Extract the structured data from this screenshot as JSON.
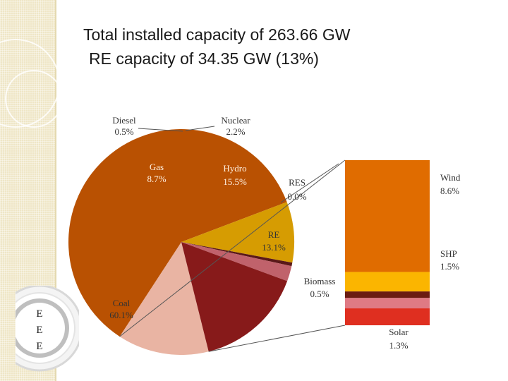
{
  "slide": {
    "title_line1": "Total installed capacity of 263.66 GW",
    "title_line2": "RE capacity of 34.35 GW (13%)",
    "badge_letters": [
      "E",
      "E",
      "E"
    ]
  },
  "colors": {
    "coal": "#b95102",
    "gas": "#d69c02",
    "hydro": "#871a1a",
    "nuclear": "#c0626b",
    "diesel": "#5a1818",
    "res": "#5a1818",
    "re": "#e9b4a3",
    "wind": "#e06c00",
    "shp": "#fbb500",
    "biomass": "#6b1c12",
    "solar": "#df2f20",
    "re_pink": "#df7a84",
    "connector": "#555555"
  },
  "chart_data": {
    "type": "pie",
    "title": "Total installed capacity of 263.66 GW",
    "subtitle": "RE capacity of 34.35 GW (13%)",
    "slices": [
      {
        "key": "coal",
        "name": "Coal",
        "value": 60.1,
        "label": "60.1%"
      },
      {
        "key": "gas",
        "name": "Gas",
        "value": 8.7,
        "label": "8.7%"
      },
      {
        "key": "diesel",
        "name": "Diesel",
        "value": 0.5,
        "label": "0.5%"
      },
      {
        "key": "nuclear",
        "name": "Nuclear",
        "value": 2.2,
        "label": "2.2%"
      },
      {
        "key": "hydro",
        "name": "Hydro",
        "value": 15.5,
        "label": "15.5%"
      },
      {
        "key": "res",
        "name": "RES",
        "value": 0.0,
        "label": "0.0%"
      },
      {
        "key": "re",
        "name": "RE",
        "value": 13.1,
        "label": "13.1%"
      }
    ],
    "breakdown": {
      "parent": "RE",
      "segments": [
        {
          "key": "wind",
          "name": "Wind",
          "value": 8.6,
          "label": "8.6%"
        },
        {
          "key": "shp",
          "name": "SHP",
          "value": 1.5,
          "label": "1.5%"
        },
        {
          "key": "biomass",
          "name": "Biomass",
          "value": 0.5,
          "label": "0.5%"
        },
        {
          "key": "re_pink",
          "name": "",
          "value": 0.8,
          "label": ""
        },
        {
          "key": "solar",
          "name": "Solar",
          "value": 1.3,
          "label": "1.3%"
        }
      ]
    }
  }
}
